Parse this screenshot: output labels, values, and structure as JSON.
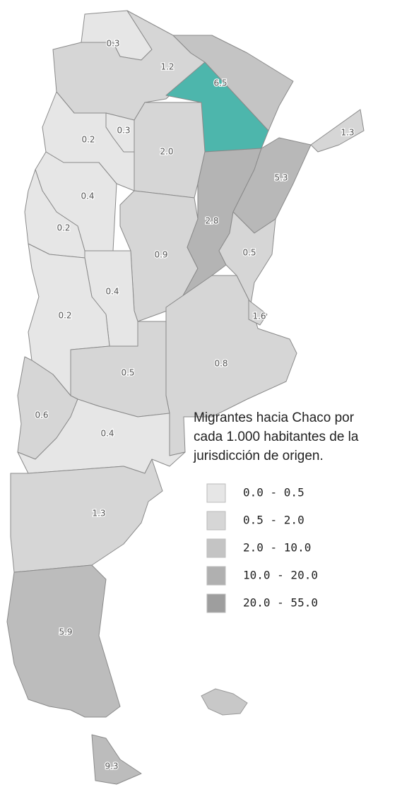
{
  "map": {
    "regions": [
      {
        "name": "Jujuy",
        "label": "0.3",
        "color": "#e6e6e6"
      },
      {
        "name": "Salta",
        "label": "1.2",
        "color": "#d6d6d6"
      },
      {
        "name": "Formosa",
        "label": "6.5",
        "color": "#c4c4c4"
      },
      {
        "name": "Chaco",
        "color": "#4db6ac"
      },
      {
        "name": "Santiago del Estero",
        "label": "2.0",
        "color": "#d6d6d6"
      },
      {
        "name": "Tucumán",
        "label": "0.3",
        "color": "#e6e6e6"
      },
      {
        "name": "Catamarca",
        "label": "0.2",
        "color": "#e6e6e6"
      },
      {
        "name": "La Rioja",
        "label": "0.4",
        "color": "#e6e6e6"
      },
      {
        "name": "San Juan",
        "label": "0.2",
        "color": "#e6e6e6"
      },
      {
        "name": "Córdoba",
        "label": "0.9",
        "color": "#d6d6d6"
      },
      {
        "name": "San Luis",
        "label": "0.4",
        "color": "#e6e6e6"
      },
      {
        "name": "Mendoza",
        "label": "0.2",
        "color": "#e6e6e6"
      },
      {
        "name": "Santa Fe",
        "label": "2.8",
        "color": "#b4b4b4"
      },
      {
        "name": "Corrientes",
        "label": "5.3",
        "color": "#b8b8b8"
      },
      {
        "name": "Misiones",
        "label": "1.3",
        "color": "#d6d6d6"
      },
      {
        "name": "Entre Ríos",
        "label": "0.5",
        "color": "#d6d6d6"
      },
      {
        "name": "Buenos Aires",
        "label": "0.8",
        "color": "#d6d6d6"
      },
      {
        "name": "CABA",
        "label": "1.6",
        "color": "#d6d6d6"
      },
      {
        "name": "La Pampa",
        "label": "0.5",
        "color": "#d6d6d6"
      },
      {
        "name": "Neuquén",
        "label": "0.6",
        "color": "#d6d6d6"
      },
      {
        "name": "Río Negro",
        "label": "0.4",
        "color": "#e6e6e6"
      },
      {
        "name": "Chubut",
        "label": "1.3",
        "color": "#d6d6d6"
      },
      {
        "name": "Santa Cruz",
        "label": "5.9",
        "color": "#bcbcbc"
      },
      {
        "name": "Tierra del Fuego",
        "label": "9.3",
        "color": "#bcbcbc"
      }
    ],
    "legend": {
      "title": [
        "Migrantes hacia Chaco por",
        "cada 1.000 habitantes de la",
        "jurisdicción de origen."
      ],
      "classes": [
        {
          "label": "0.0 - 0.5",
          "color": "#e6e6e6"
        },
        {
          "label": "0.5 - 2.0",
          "color": "#d6d6d6"
        },
        {
          "label": "2.0 - 10.0",
          "color": "#c4c4c4"
        },
        {
          "label": "10.0 - 20.0",
          "color": "#b0b0b0"
        },
        {
          "label": "20.0 - 55.0",
          "color": "#9e9e9e"
        }
      ]
    }
  }
}
